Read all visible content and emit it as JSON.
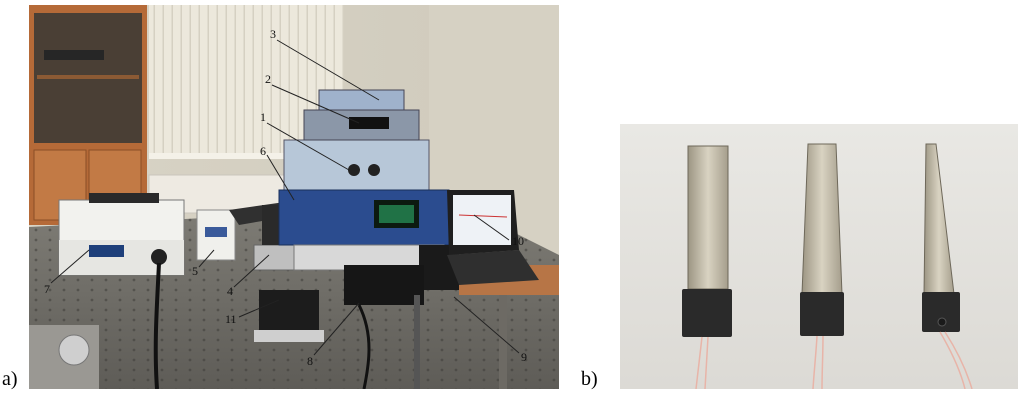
{
  "figure": {
    "panel_a": {
      "label": "a)",
      "callouts": [
        "1",
        "2",
        "3",
        "4",
        "5",
        "6",
        "7",
        "8",
        "9",
        "10",
        "11"
      ]
    },
    "panel_b": {
      "label": "b)"
    }
  }
}
